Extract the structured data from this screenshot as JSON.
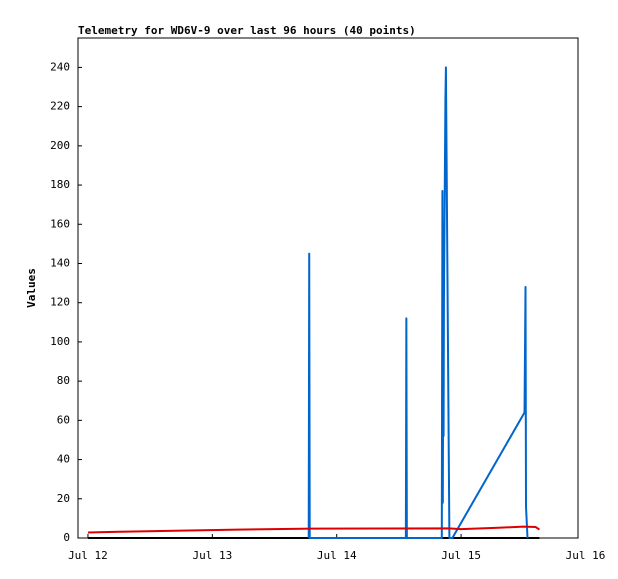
{
  "chart_data": {
    "type": "line",
    "title": "Telemetry for WD6V-9 over last 96 hours (40 points)",
    "y_label": "Values",
    "xlim": [
      11.92,
      15.94
    ],
    "xticks": [
      {
        "value": 12,
        "label": "Jul 12"
      },
      {
        "value": 13,
        "label": "Jul 13"
      },
      {
        "value": 14,
        "label": "Jul 14"
      },
      {
        "value": 15,
        "label": "Jul 15"
      },
      {
        "value": 16,
        "label": "Jul 16"
      }
    ],
    "ylim": [
      0,
      255
    ],
    "yticks": [
      0,
      20,
      40,
      60,
      80,
      100,
      120,
      140,
      160,
      180,
      200,
      220,
      240
    ],
    "series": [
      {
        "color": "#000000",
        "x": [
          12.0,
          15.63
        ],
        "values": [
          0,
          0
        ]
      },
      {
        "color": "#0066cc",
        "x": [
          13.775,
          13.779,
          13.783,
          14.556,
          14.56,
          14.564,
          14.845,
          14.85,
          14.853,
          14.856,
          14.859,
          14.862,
          14.866,
          14.87,
          14.874,
          14.878,
          14.906,
          14.93,
          15.51,
          15.518,
          15.522,
          15.534
        ],
        "values": [
          0,
          145,
          0,
          0,
          112,
          0,
          0,
          177,
          18,
          88,
          52,
          120,
          155,
          188,
          223,
          240,
          0,
          0,
          64,
          128,
          16,
          0
        ]
      },
      {
        "color": "#dd0000",
        "x": [
          12.0,
          12.25,
          12.7,
          13.2,
          13.8,
          14.9,
          15.0,
          15.3,
          15.5,
          15.6,
          15.63
        ],
        "values": [
          2.8,
          3.2,
          3.7,
          4.3,
          4.8,
          4.9,
          4.5,
          5.2,
          5.8,
          5.6,
          4.3
        ]
      }
    ]
  }
}
